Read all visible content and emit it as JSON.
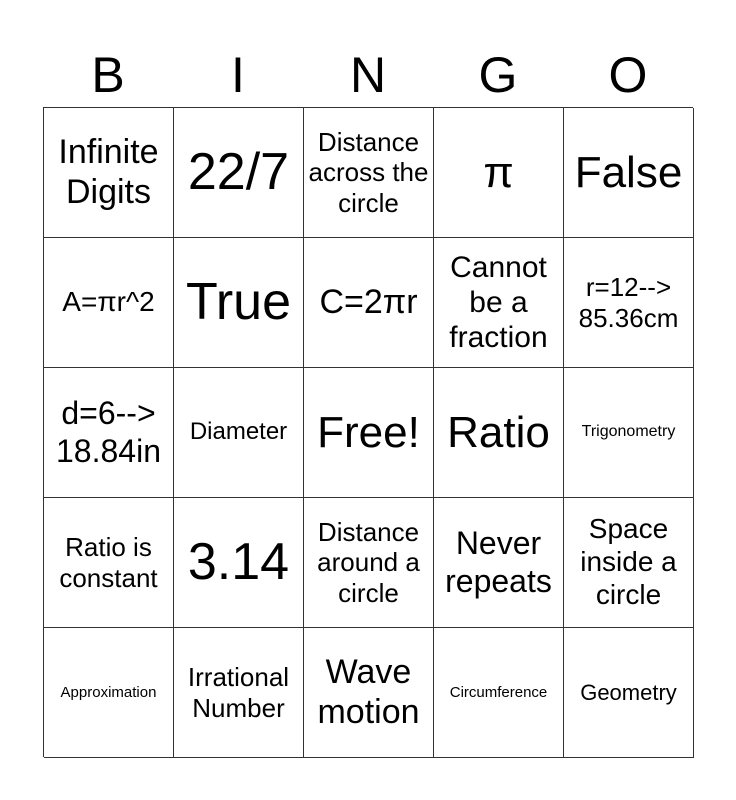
{
  "header": [
    "B",
    "I",
    "N",
    "G",
    "O"
  ],
  "cells": [
    "Infinite Digits",
    "22/7",
    "Distance across the circle",
    "π",
    "False",
    "A=πr^2",
    "True",
    "C=2πr",
    "Cannot be a fraction",
    "r=12--> 85.36cm",
    "d=6--> 18.84in",
    "Diameter",
    "Free!",
    "Ratio",
    "Trigonometry",
    "Ratio is constant",
    "3.14",
    "Distance around a circle",
    "Never repeats",
    "Space inside a circle",
    "Approximation",
    "Irrational Number",
    "Wave motion",
    "Circumference",
    "Geometry"
  ]
}
